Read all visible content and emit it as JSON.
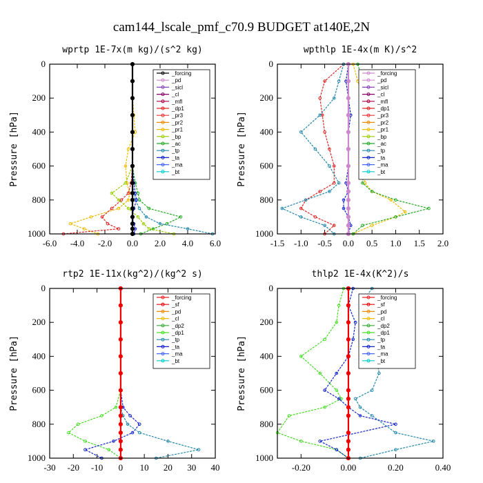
{
  "page_title": "cam144_lscale_pmf_c70.9  BUDGET at140E,2N",
  "colors": {
    "forcing": "#000000",
    "pd": "#cc88cc",
    "sicl": "#8844bb",
    "cl": "#880066",
    "mfl": "#aa0044",
    "dp1": "#dd2222",
    "pr3": "#ee3333",
    "pr2": "#ee8800",
    "pr1": "#eebb00",
    "bp": "#99cc00",
    "ac": "#22aa22",
    "tp": "#2288aa",
    "ta": "#1122cc",
    "ma": "#4466ff",
    "bt": "#00cccc",
    "sf": "#ee0000",
    "dp2": "#33aa33",
    "dp1g": "#44dd22",
    "dp1b": "#ee2222",
    "forcing_red": "#ee0000"
  },
  "chart_data": [
    {
      "type": "line",
      "title": "wprtp  1E-7x(m kg)/(s^2 kg)",
      "ylabel": "Pressure [hPa]",
      "xlim": [
        -6,
        6
      ],
      "ylim": [
        1000,
        0
      ],
      "xticks": [
        "-6.0",
        "-4.0",
        "-2.0",
        "0.0",
        "2.0",
        "4.0",
        "6.0"
      ],
      "xtick_values": [
        -6,
        -4,
        -2,
        0,
        2,
        4,
        6
      ],
      "yticks": [
        "0",
        "200",
        "400",
        "600",
        "800",
        "1000"
      ],
      "ytick_values": [
        0,
        200,
        400,
        600,
        800,
        1000
      ],
      "legend": [
        "_forcing",
        "_pd",
        "_sicl",
        "_cl",
        "_mfl",
        "_dp1",
        "_pr3",
        "_pr2",
        "_pr1",
        "_bp",
        "_ac",
        "_tp",
        "_ta",
        "_ma",
        "_bt"
      ],
      "legend_colors": [
        "forcing",
        "pd",
        "sicl",
        "cl",
        "mfl",
        "dp1",
        "pr3",
        "pr2",
        "pr1",
        "bp",
        "ac",
        "tp",
        "ta",
        "ma",
        "bt"
      ],
      "series": [
        {
          "name": "_pr1",
          "color": "pr1",
          "x": [
            0,
            0,
            0,
            0.1,
            0.2,
            -0.3,
            -0.5,
            -0.4,
            -0.2,
            -0.3,
            -1.0,
            -3.0,
            -4.5,
            -3.5,
            -2.5
          ],
          "y": [
            0,
            100,
            200,
            300,
            400,
            500,
            600,
            700,
            760,
            800,
            850,
            900,
            940,
            970,
            1000
          ]
        },
        {
          "name": "_dp1",
          "color": "dp1",
          "x": [
            0,
            0,
            0,
            0,
            0,
            0,
            0,
            -0.1,
            -0.3,
            -0.8,
            -1.5,
            -2.2,
            -1.8,
            -1.0,
            -5.0
          ],
          "y": [
            0,
            100,
            200,
            300,
            400,
            500,
            600,
            700,
            760,
            800,
            850,
            900,
            940,
            970,
            1000
          ]
        },
        {
          "name": "_ac",
          "color": "ac",
          "x": [
            0,
            0,
            0,
            0,
            0,
            0,
            0,
            0.2,
            0.4,
            0.5,
            1.2,
            3.5,
            2.5,
            1.5,
            0.6
          ],
          "y": [
            0,
            100,
            200,
            300,
            400,
            500,
            600,
            700,
            760,
            800,
            850,
            900,
            940,
            970,
            1000
          ]
        },
        {
          "name": "_bp",
          "color": "bp",
          "x": [
            0,
            0,
            0,
            0,
            0,
            0,
            0,
            -0.5,
            -1.5,
            -1.0,
            -0.3,
            0.4,
            0.8,
            1.2,
            3.0
          ],
          "y": [
            0,
            100,
            200,
            300,
            400,
            500,
            600,
            700,
            760,
            800,
            850,
            900,
            940,
            970,
            1000
          ]
        },
        {
          "name": "_tp",
          "color": "tp",
          "x": [
            0,
            0,
            0,
            0,
            0,
            0,
            0,
            0,
            0.1,
            0.2,
            0.5,
            1.0,
            2.0,
            4.0,
            5.8
          ],
          "y": [
            0,
            100,
            200,
            300,
            400,
            500,
            600,
            700,
            760,
            800,
            850,
            900,
            940,
            970,
            1000
          ]
        },
        {
          "name": "_ta",
          "color": "ta",
          "x": [
            0,
            0,
            0,
            0,
            0,
            0,
            0,
            0.1,
            0.2,
            0.3,
            0.1,
            0,
            0.1,
            0.2,
            0.1
          ],
          "y": [
            0,
            100,
            200,
            300,
            400,
            500,
            600,
            700,
            760,
            800,
            850,
            900,
            940,
            970,
            1000
          ]
        },
        {
          "name": "_forcing",
          "color": "forcing",
          "x": [
            0,
            0,
            0,
            0,
            0,
            0,
            0,
            0,
            0,
            0,
            0,
            0,
            0,
            0,
            0
          ],
          "y": [
            0,
            100,
            200,
            300,
            400,
            500,
            600,
            700,
            760,
            800,
            850,
            900,
            940,
            970,
            1000
          ]
        }
      ]
    },
    {
      "type": "line",
      "title": "wpthlp  1E-4x(m K)/s^2",
      "ylabel": "Pressure [hPa]",
      "xlim": [
        -1.5,
        2.0
      ],
      "ylim": [
        1000,
        0
      ],
      "xticks": [
        "-1.5",
        "-1.0",
        "-0.5",
        "0.0",
        "0.5",
        "1.0",
        "1.5",
        "2.0"
      ],
      "xtick_values": [
        -1.5,
        -1.0,
        -0.5,
        0,
        0.5,
        1.0,
        1.5,
        2.0
      ],
      "yticks": [
        "0",
        "200",
        "400",
        "600",
        "800",
        "1000"
      ],
      "ytick_values": [
        0,
        200,
        400,
        600,
        800,
        1000
      ],
      "legend": [
        "_forcing",
        "_pd",
        "_sicl",
        "_cl",
        "_mfl",
        "_dp1",
        "_pr3",
        "_pr2",
        "_pr1",
        "_bp",
        "_ac",
        "_tp",
        "_ta",
        "_ma",
        "_bt"
      ],
      "legend_colors": [
        "pd",
        "pd",
        "sicl",
        "cl",
        "mfl",
        "dp1",
        "pr3",
        "pr2",
        "pr1",
        "bp",
        "ac",
        "tp",
        "ta",
        "ma",
        "bt"
      ],
      "series": [
        {
          "name": "_pr1",
          "color": "pr1",
          "x": [
            0.1,
            0.2,
            0.3,
            0.35,
            0.3,
            0.25,
            0.3,
            0.35,
            0.5,
            0.9,
            1.2,
            1.0,
            0.5,
            0.1
          ],
          "y": [
            0,
            100,
            200,
            300,
            400,
            500,
            600,
            700,
            750,
            800,
            870,
            900,
            950,
            1000
          ]
        },
        {
          "name": "_ac",
          "color": "ac",
          "x": [
            0.2,
            0.3,
            0.4,
            0.45,
            0.55,
            0.5,
            0.35,
            0.3,
            0.5,
            1.0,
            1.7,
            1.0,
            0.3,
            0.1
          ],
          "y": [
            0,
            100,
            200,
            300,
            400,
            500,
            600,
            700,
            750,
            800,
            850,
            900,
            950,
            1000
          ]
        },
        {
          "name": "_dp1",
          "color": "dp1",
          "x": [
            -0.1,
            -0.5,
            -0.6,
            -0.55,
            -0.5,
            -0.4,
            -0.3,
            -0.3,
            -0.6,
            -0.9,
            -1.0,
            -0.7,
            -0.3,
            -0.5
          ],
          "y": [
            0,
            100,
            200,
            300,
            400,
            500,
            600,
            700,
            750,
            800,
            850,
            900,
            950,
            1000
          ]
        },
        {
          "name": "_tp",
          "color": "tp",
          "x": [
            -0.1,
            -0.2,
            -0.3,
            -0.6,
            -1.0,
            -0.7,
            -0.4,
            -0.2,
            -0.4,
            -0.9,
            -1.4,
            -1.0,
            -0.5,
            -0.3
          ],
          "y": [
            0,
            100,
            200,
            300,
            400,
            500,
            600,
            700,
            750,
            800,
            850,
            900,
            950,
            1000
          ]
        },
        {
          "name": "_ta",
          "color": "ta",
          "x": [
            0,
            -0.05,
            0,
            0.05,
            0,
            0,
            0,
            -0.05,
            0,
            -0.1,
            -0.1,
            0,
            0.05,
            0
          ],
          "y": [
            0,
            100,
            200,
            300,
            400,
            500,
            600,
            700,
            750,
            800,
            850,
            900,
            950,
            1000
          ]
        },
        {
          "name": "_pd",
          "color": "pd",
          "x": [
            0,
            0,
            0,
            0,
            0,
            0,
            0,
            0,
            0,
            0,
            0,
            0,
            0,
            0
          ],
          "y": [
            0,
            100,
            200,
            300,
            400,
            500,
            600,
            700,
            750,
            800,
            850,
            900,
            950,
            1000
          ]
        }
      ]
    },
    {
      "type": "line",
      "title": "rtp2  1E-11x(kg^2)/(kg^2 s)",
      "ylabel": "Pressure [hPa]",
      "xlim": [
        -30,
        40
      ],
      "ylim": [
        1000,
        0
      ],
      "xticks": [
        "-30",
        "-20",
        "-10",
        "0",
        "10",
        "20",
        "30",
        "40"
      ],
      "xtick_values": [
        -30,
        -20,
        -10,
        0,
        10,
        20,
        30,
        40
      ],
      "yticks": [
        "0",
        "200",
        "400",
        "600",
        "800",
        "1000"
      ],
      "ytick_values": [
        0,
        200,
        400,
        600,
        800,
        1000
      ],
      "legend": [
        "_forcing",
        "_sf",
        "_pd",
        "_cl",
        "_dp2",
        "_dp1",
        "_tp",
        "_ta",
        "_ma",
        "_bt"
      ],
      "legend_colors": [
        "dp1b",
        "sf",
        "pr2",
        "pr1",
        "dp2",
        "dp1g",
        "tp",
        "ta",
        "ma",
        "bt"
      ],
      "series": [
        {
          "name": "_dp1",
          "color": "dp1g",
          "x": [
            0,
            0,
            0,
            0,
            0,
            0,
            0,
            -2,
            -8,
            -18,
            -22,
            -15,
            -5,
            0
          ],
          "y": [
            0,
            100,
            200,
            300,
            400,
            500,
            600,
            700,
            750,
            800,
            850,
            900,
            950,
            1000
          ]
        },
        {
          "name": "_ta",
          "color": "ta",
          "x": [
            0,
            0,
            0,
            0,
            0,
            0,
            0,
            1,
            4,
            8,
            5,
            -3,
            -15,
            -8
          ],
          "y": [
            0,
            100,
            200,
            300,
            400,
            500,
            600,
            700,
            750,
            800,
            850,
            900,
            950,
            1000
          ]
        },
        {
          "name": "_tp",
          "color": "tp",
          "x": [
            0,
            0,
            0,
            0,
            0,
            0,
            0,
            0,
            1,
            3,
            8,
            20,
            33,
            15
          ],
          "y": [
            0,
            100,
            200,
            300,
            400,
            500,
            600,
            700,
            750,
            800,
            850,
            900,
            950,
            1000
          ]
        },
        {
          "name": "_forcing",
          "color": "forcing_red",
          "x": [
            0,
            0,
            0,
            0,
            0,
            0,
            0,
            0,
            0,
            0,
            0,
            0,
            0,
            0
          ],
          "y": [
            0,
            100,
            200,
            300,
            400,
            500,
            600,
            700,
            750,
            800,
            850,
            900,
            950,
            1000
          ]
        }
      ]
    },
    {
      "type": "line",
      "title": "thlp2  1E-4x(K^2)/s",
      "ylabel": "Pressure [hPa]",
      "xlim": [
        -0.3,
        0.4
      ],
      "ylim": [
        1000,
        0
      ],
      "xticks": [
        "-0.20",
        "0.00",
        "0.20",
        "0.40"
      ],
      "xtick_values": [
        -0.2,
        0,
        0.2,
        0.4
      ],
      "yticks": [
        "0",
        "200",
        "400",
        "600",
        "800",
        "1000"
      ],
      "ytick_values": [
        0,
        200,
        400,
        600,
        800,
        1000
      ],
      "legend": [
        "_forcing",
        "_sf",
        "_pd",
        "_cl",
        "_dp2",
        "_dp1",
        "_tp",
        "_ta",
        "_ma",
        "_bt"
      ],
      "legend_colors": [
        "dp1b",
        "sf",
        "pr2",
        "pr1",
        "dp2",
        "dp1g",
        "tp",
        "ta",
        "ma",
        "bt"
      ],
      "series": [
        {
          "name": "_dp1",
          "color": "dp1g",
          "x": [
            -0.02,
            -0.04,
            -0.05,
            -0.1,
            -0.2,
            -0.12,
            -0.05,
            -0.03,
            -0.1,
            -0.25,
            -0.3,
            -0.2,
            -0.05,
            0
          ],
          "y": [
            0,
            100,
            200,
            300,
            400,
            500,
            600,
            650,
            700,
            750,
            850,
            900,
            950,
            1000
          ]
        },
        {
          "name": "_tp",
          "color": "tp",
          "x": [
            0.1,
            0.05,
            0.1,
            0.12,
            0.12,
            0.13,
            0.1,
            0.03,
            0.05,
            0.1,
            0.2,
            0.36,
            0.2,
            0.05
          ],
          "y": [
            0,
            100,
            200,
            300,
            400,
            500,
            600,
            650,
            700,
            750,
            850,
            900,
            950,
            1000
          ]
        },
        {
          "name": "_ta",
          "color": "ta",
          "x": [
            0.02,
            0,
            0.03,
            0.02,
            0,
            -0.05,
            -0.1,
            -0.04,
            0,
            0.05,
            0.2,
            -0.12,
            -0.05,
            0
          ],
          "y": [
            0,
            100,
            200,
            300,
            400,
            500,
            600,
            650,
            700,
            750,
            800,
            900,
            950,
            1000
          ]
        },
        {
          "name": "_forcing",
          "color": "forcing_red",
          "x": [
            0,
            0,
            0,
            0,
            0,
            0,
            0,
            0,
            0,
            0,
            0,
            0,
            0,
            0
          ],
          "y": [
            0,
            100,
            200,
            300,
            400,
            500,
            600,
            650,
            700,
            750,
            850,
            900,
            950,
            1000
          ]
        }
      ]
    }
  ]
}
